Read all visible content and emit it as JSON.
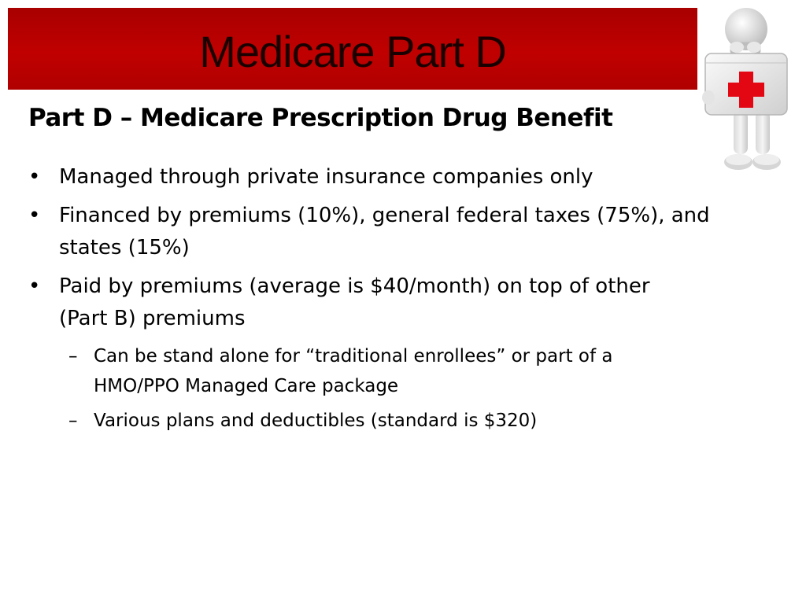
{
  "slide": {
    "title": "Medicare Part D",
    "subtitle": "Part D – Medicare Prescription Drug Benefit",
    "bullet_symbol": "•",
    "sub_bullet_symbol": "–",
    "bullets": [
      {
        "text": "Managed through private insurance companies only"
      },
      {
        "text": "Financed by premiums (10%), general federal taxes (75%), and states (15%)"
      },
      {
        "text": "Paid by premiums (average is $40/month) on top of other (Part B) premiums"
      }
    ],
    "sub_bullets": [
      {
        "text": "Can be stand alone for “traditional enrollees” or part of a HMO/PPO Managed Care package"
      },
      {
        "text": "Various plans and deductibles (standard is $320)"
      }
    ],
    "illustration": {
      "icon": "person-with-first-aid-kit-icon",
      "accent_color": "#e30613",
      "title_bar_color": "#c00000"
    }
  }
}
